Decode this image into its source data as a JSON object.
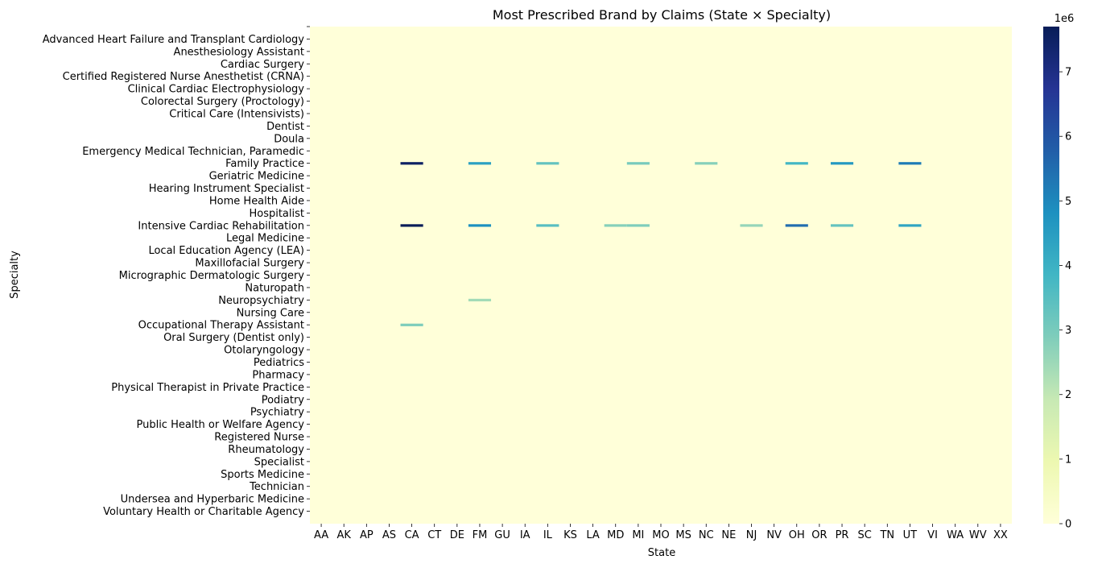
{
  "chart_data": {
    "type": "heatmap",
    "title": "Most Prescribed Brand by Claims (State × Specialty)",
    "xlabel": "State",
    "ylabel": "Specialty",
    "x_ticks": [
      "AA",
      "AK",
      "AP",
      "AS",
      "CA",
      "CT",
      "DE",
      "FM",
      "GU",
      "IA",
      "IL",
      "KS",
      "LA",
      "MD",
      "MI",
      "MO",
      "MS",
      "NC",
      "NE",
      "NJ",
      "NV",
      "OH",
      "OR",
      "PR",
      "SC",
      "TN",
      "UT",
      "VI",
      "WA",
      "WV",
      "XX"
    ],
    "y_ticks": [
      "",
      "Advanced Heart Failure and Transplant Cardiology",
      "Anesthesiology Assistant",
      "Cardiac Surgery",
      "Certified Registered Nurse Anesthetist (CRNA)",
      "Clinical Cardiac Electrophysiology",
      "Colorectal Surgery (Proctology)",
      "Critical Care (Intensivists)",
      "Dentist",
      "Doula",
      "Emergency Medical Technician, Paramedic",
      "Family Practice",
      "Geriatric Medicine",
      "Hearing Instrument Specialist",
      "Home Health Aide",
      "Hospitalist",
      "Intensive Cardiac Rehabilitation",
      "Legal Medicine",
      "Local Education Agency (LEA)",
      "Maxillofacial Surgery",
      "Micrographic Dermatologic Surgery",
      "Naturopath",
      "Neuropsychiatry",
      "Nursing Care",
      "Occupational Therapy Assistant",
      "Oral Surgery (Dentist only)",
      "Otolaryngology",
      "Pediatrics",
      "Pharmacy",
      "Physical Therapist in Private Practice",
      "Podiatry",
      "Psychiatry",
      "Public Health or Welfare Agency",
      "Registered Nurse",
      "Rheumatology",
      "Specialist",
      "Sports Medicine",
      "Technician",
      "Undersea and Hyperbaric Medicine",
      "Voluntary Health or Charitable Agency"
    ],
    "colorbar": {
      "scale_label": "1e6",
      "ticks": [
        "0",
        "1",
        "2",
        "3",
        "4",
        "5",
        "6",
        "7"
      ],
      "min": 0,
      "max": 7.7,
      "colormap": "YlGnBu"
    },
    "highlighted_cells": [
      {
        "state": "CA",
        "specialty": "Family Practice",
        "value": 7.5
      },
      {
        "state": "CA",
        "specialty": "Intensive Cardiac Rehabilitation",
        "value": 7.7
      },
      {
        "state": "FM",
        "specialty": "Family Practice",
        "value": 4.4
      },
      {
        "state": "FM",
        "specialty": "Intensive Cardiac Rehabilitation",
        "value": 4.8
      },
      {
        "state": "IL",
        "specialty": "Family Practice",
        "value": 3.3
      },
      {
        "state": "IL",
        "specialty": "Intensive Cardiac Rehabilitation",
        "value": 3.5
      },
      {
        "state": "MI",
        "specialty": "Family Practice",
        "value": 3.0
      },
      {
        "state": "MI",
        "specialty": "Intensive Cardiac Rehabilitation",
        "value": 2.9
      },
      {
        "state": "NC",
        "specialty": "Family Practice",
        "value": 2.8
      },
      {
        "state": "OH",
        "specialty": "Family Practice",
        "value": 3.8
      },
      {
        "state": "OH",
        "specialty": "Intensive Cardiac Rehabilitation",
        "value": 5.5
      },
      {
        "state": "PR",
        "specialty": "Family Practice",
        "value": 4.6
      },
      {
        "state": "PR",
        "specialty": "Intensive Cardiac Rehabilitation",
        "value": 3.3
      },
      {
        "state": "UT",
        "specialty": "Family Practice",
        "value": 5.2
      },
      {
        "state": "UT",
        "specialty": "Intensive Cardiac Rehabilitation",
        "value": 4.3
      },
      {
        "state": "CA",
        "specialty": "Occupational Therapy Assistant",
        "value": 2.9
      },
      {
        "state": "FM",
        "specialty": "Neuropsychiatry",
        "value": 2.4
      },
      {
        "state": "MD",
        "specialty": "Intensive Cardiac Rehabilitation",
        "value": 2.8
      },
      {
        "state": "NJ",
        "specialty": "Intensive Cardiac Rehabilitation",
        "value": 2.6
      }
    ],
    "grid": false,
    "legend": "colorbar-right"
  }
}
